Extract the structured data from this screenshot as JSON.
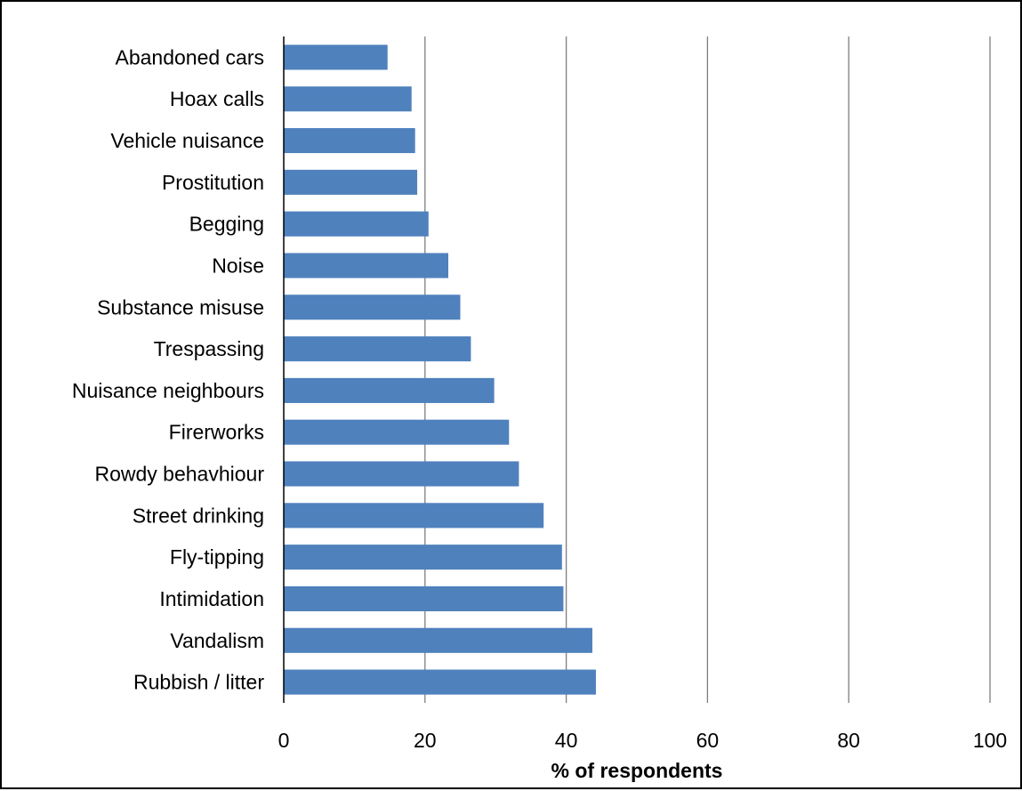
{
  "chart_data": {
    "type": "bar",
    "orientation": "horizontal",
    "categories": [
      "Abandoned cars",
      "Hoax calls",
      "Vehicle nuisance",
      "Prostitution",
      "Begging",
      "Noise",
      "Substance misuse",
      "Trespassing",
      "Nuisance neighbours",
      "Firerworks",
      "Rowdy behavhiour",
      "Street drinking",
      "Fly-tipping",
      "Intimidation",
      "Vandalism",
      "Rubbish / litter"
    ],
    "values": [
      14.7,
      18.1,
      18.6,
      18.9,
      20.5,
      23.3,
      25.0,
      26.5,
      29.8,
      31.9,
      33.3,
      36.8,
      39.4,
      39.6,
      43.7,
      44.2
    ],
    "xlabel": "% of respondents",
    "ylabel": "",
    "xlim": [
      0,
      100
    ],
    "xticks": [
      0,
      20,
      40,
      60,
      80,
      100
    ],
    "xtick_labels": [
      "0",
      "20",
      "40",
      "60",
      "80",
      "100"
    ],
    "grid": "vertical",
    "legend": "none",
    "bar_color": "#4F81BD",
    "gridline_color": "#7F7F7F"
  }
}
